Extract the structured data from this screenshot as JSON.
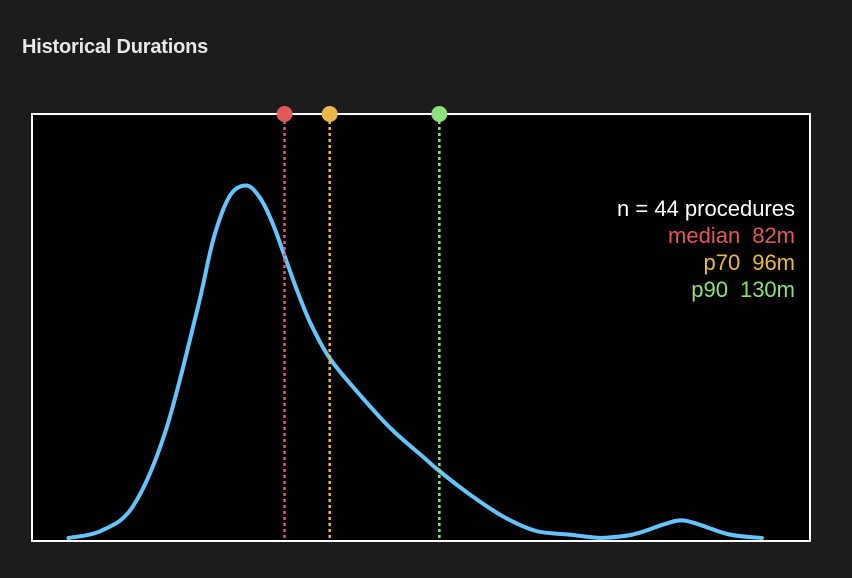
{
  "panel": {
    "title": "Historical Durations"
  },
  "colors": {
    "background": "#1c1c1c",
    "plot_background": "#000000",
    "curve": "#66c4ff",
    "median": "#e05a5a",
    "p70": "#e8b94a",
    "p90": "#8fe07a",
    "frame": "#ffffff"
  },
  "legend": {
    "header": "n = 44 procedures",
    "rows": [
      {
        "label": "median",
        "value": "82m",
        "color": "#e05a5a"
      },
      {
        "label": "p70",
        "value": "96m",
        "color": "#e8b94a"
      },
      {
        "label": "p90",
        "value": "130m",
        "color": "#8fe07a"
      }
    ]
  },
  "chart_data": {
    "type": "line",
    "n": 44,
    "x_unit": "minutes",
    "x": [
      15,
      25,
      35,
      45,
      55,
      60,
      65,
      70,
      74,
      78,
      82,
      86,
      90,
      96,
      105,
      115,
      125,
      130,
      140,
      150,
      160,
      170,
      180,
      190,
      200,
      205,
      210,
      220,
      230
    ],
    "density": [
      0.0,
      0.02,
      0.09,
      0.3,
      0.65,
      0.85,
      0.97,
      1.0,
      0.97,
      0.9,
      0.8,
      0.7,
      0.61,
      0.51,
      0.41,
      0.31,
      0.23,
      0.19,
      0.12,
      0.06,
      0.02,
      0.01,
      0.0,
      0.01,
      0.04,
      0.05,
      0.04,
      0.01,
      0.0
    ],
    "xlim": [
      4,
      244
    ],
    "ylim": [
      0,
      1.2
    ],
    "markers": [
      {
        "name": "median",
        "x": 82
      },
      {
        "name": "p70",
        "x": 96
      },
      {
        "name": "p90",
        "x": 130
      }
    ]
  }
}
